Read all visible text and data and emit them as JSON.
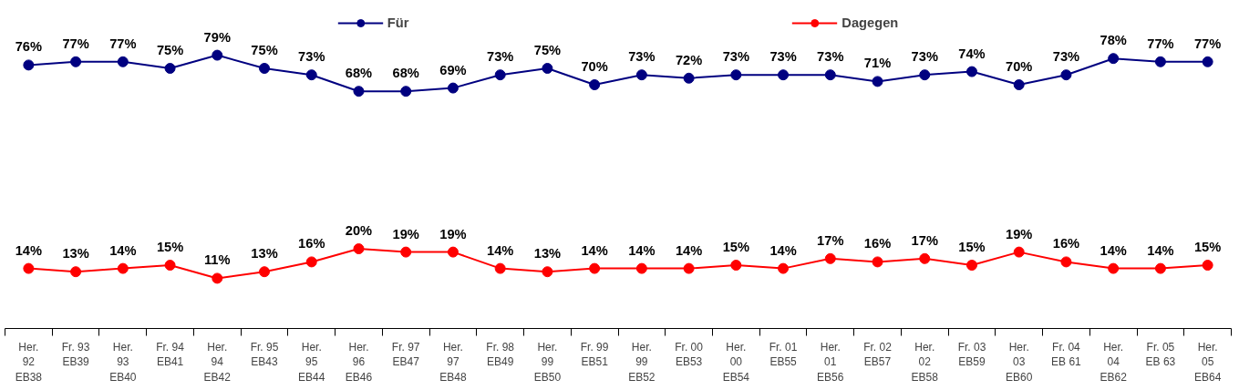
{
  "chart_data": {
    "type": "line",
    "categories": [
      "Her.\n92\nEB38",
      "Fr. 93\nEB39",
      "Her.\n93\nEB40",
      "Fr. 94\nEB41",
      "Her.\n94\nEB42",
      "Fr. 95\nEB43",
      "Her.\n95\nEB44",
      "Her.\n96\nEB46",
      "Fr. 97\nEB47",
      "Her.\n97\nEB48",
      "Fr. 98\nEB49",
      "Her.\n99\nEB50",
      "Fr. 99\nEB51",
      "Her.\n99\nEB52",
      "Fr. 00\nEB53",
      "Her.\n00\nEB54",
      "Fr. 01\nEB55",
      "Her.\n01\nEB56",
      "Fr. 02\nEB57",
      "Her.\n02\nEB58",
      "Fr. 03\nEB59",
      "Her.\n03\nEB60",
      "Fr. 04\nEB 61",
      "Her.\n04\nEB62",
      "Fr. 05\nEB 63",
      "Her.\n05\nEB64"
    ],
    "series": [
      {
        "name": "Für",
        "color": "#000080",
        "values": [
          76,
          77,
          77,
          75,
          79,
          75,
          73,
          68,
          68,
          69,
          73,
          75,
          70,
          73,
          72,
          73,
          73,
          73,
          71,
          73,
          74,
          70,
          73,
          78,
          77,
          77
        ],
        "value_labels": [
          "76%",
          "77%",
          "77%",
          "75%",
          "79%",
          "75%",
          "73%",
          "68%",
          "68%",
          "69%",
          "73%",
          "75%",
          "70%",
          "73%",
          "72%",
          "73%",
          "73%",
          "73%",
          "71%",
          "73%",
          "74%",
          "70%",
          "73%",
          "78%",
          "77%",
          "77%"
        ]
      },
      {
        "name": "Dagegen",
        "color": "#ff0000",
        "values": [
          14,
          13,
          14,
          15,
          11,
          13,
          16,
          20,
          19,
          19,
          14,
          13,
          14,
          14,
          14,
          15,
          14,
          17,
          16,
          17,
          15,
          19,
          16,
          14,
          14,
          15
        ],
        "value_labels": [
          "14%",
          "13%",
          "14%",
          "15%",
          "11%",
          "13%",
          "16%",
          "20%",
          "19%",
          "19%",
          "14%",
          "13%",
          "14%",
          "14%",
          "14%",
          "15%",
          "14%",
          "17%",
          "16%",
          "17%",
          "15%",
          "19%",
          "16%",
          "14%",
          "14%",
          "15%"
        ]
      }
    ],
    "legend": "top",
    "marker": "circle",
    "line_style": "solid",
    "grid": false,
    "tick_labels": "x"
  }
}
